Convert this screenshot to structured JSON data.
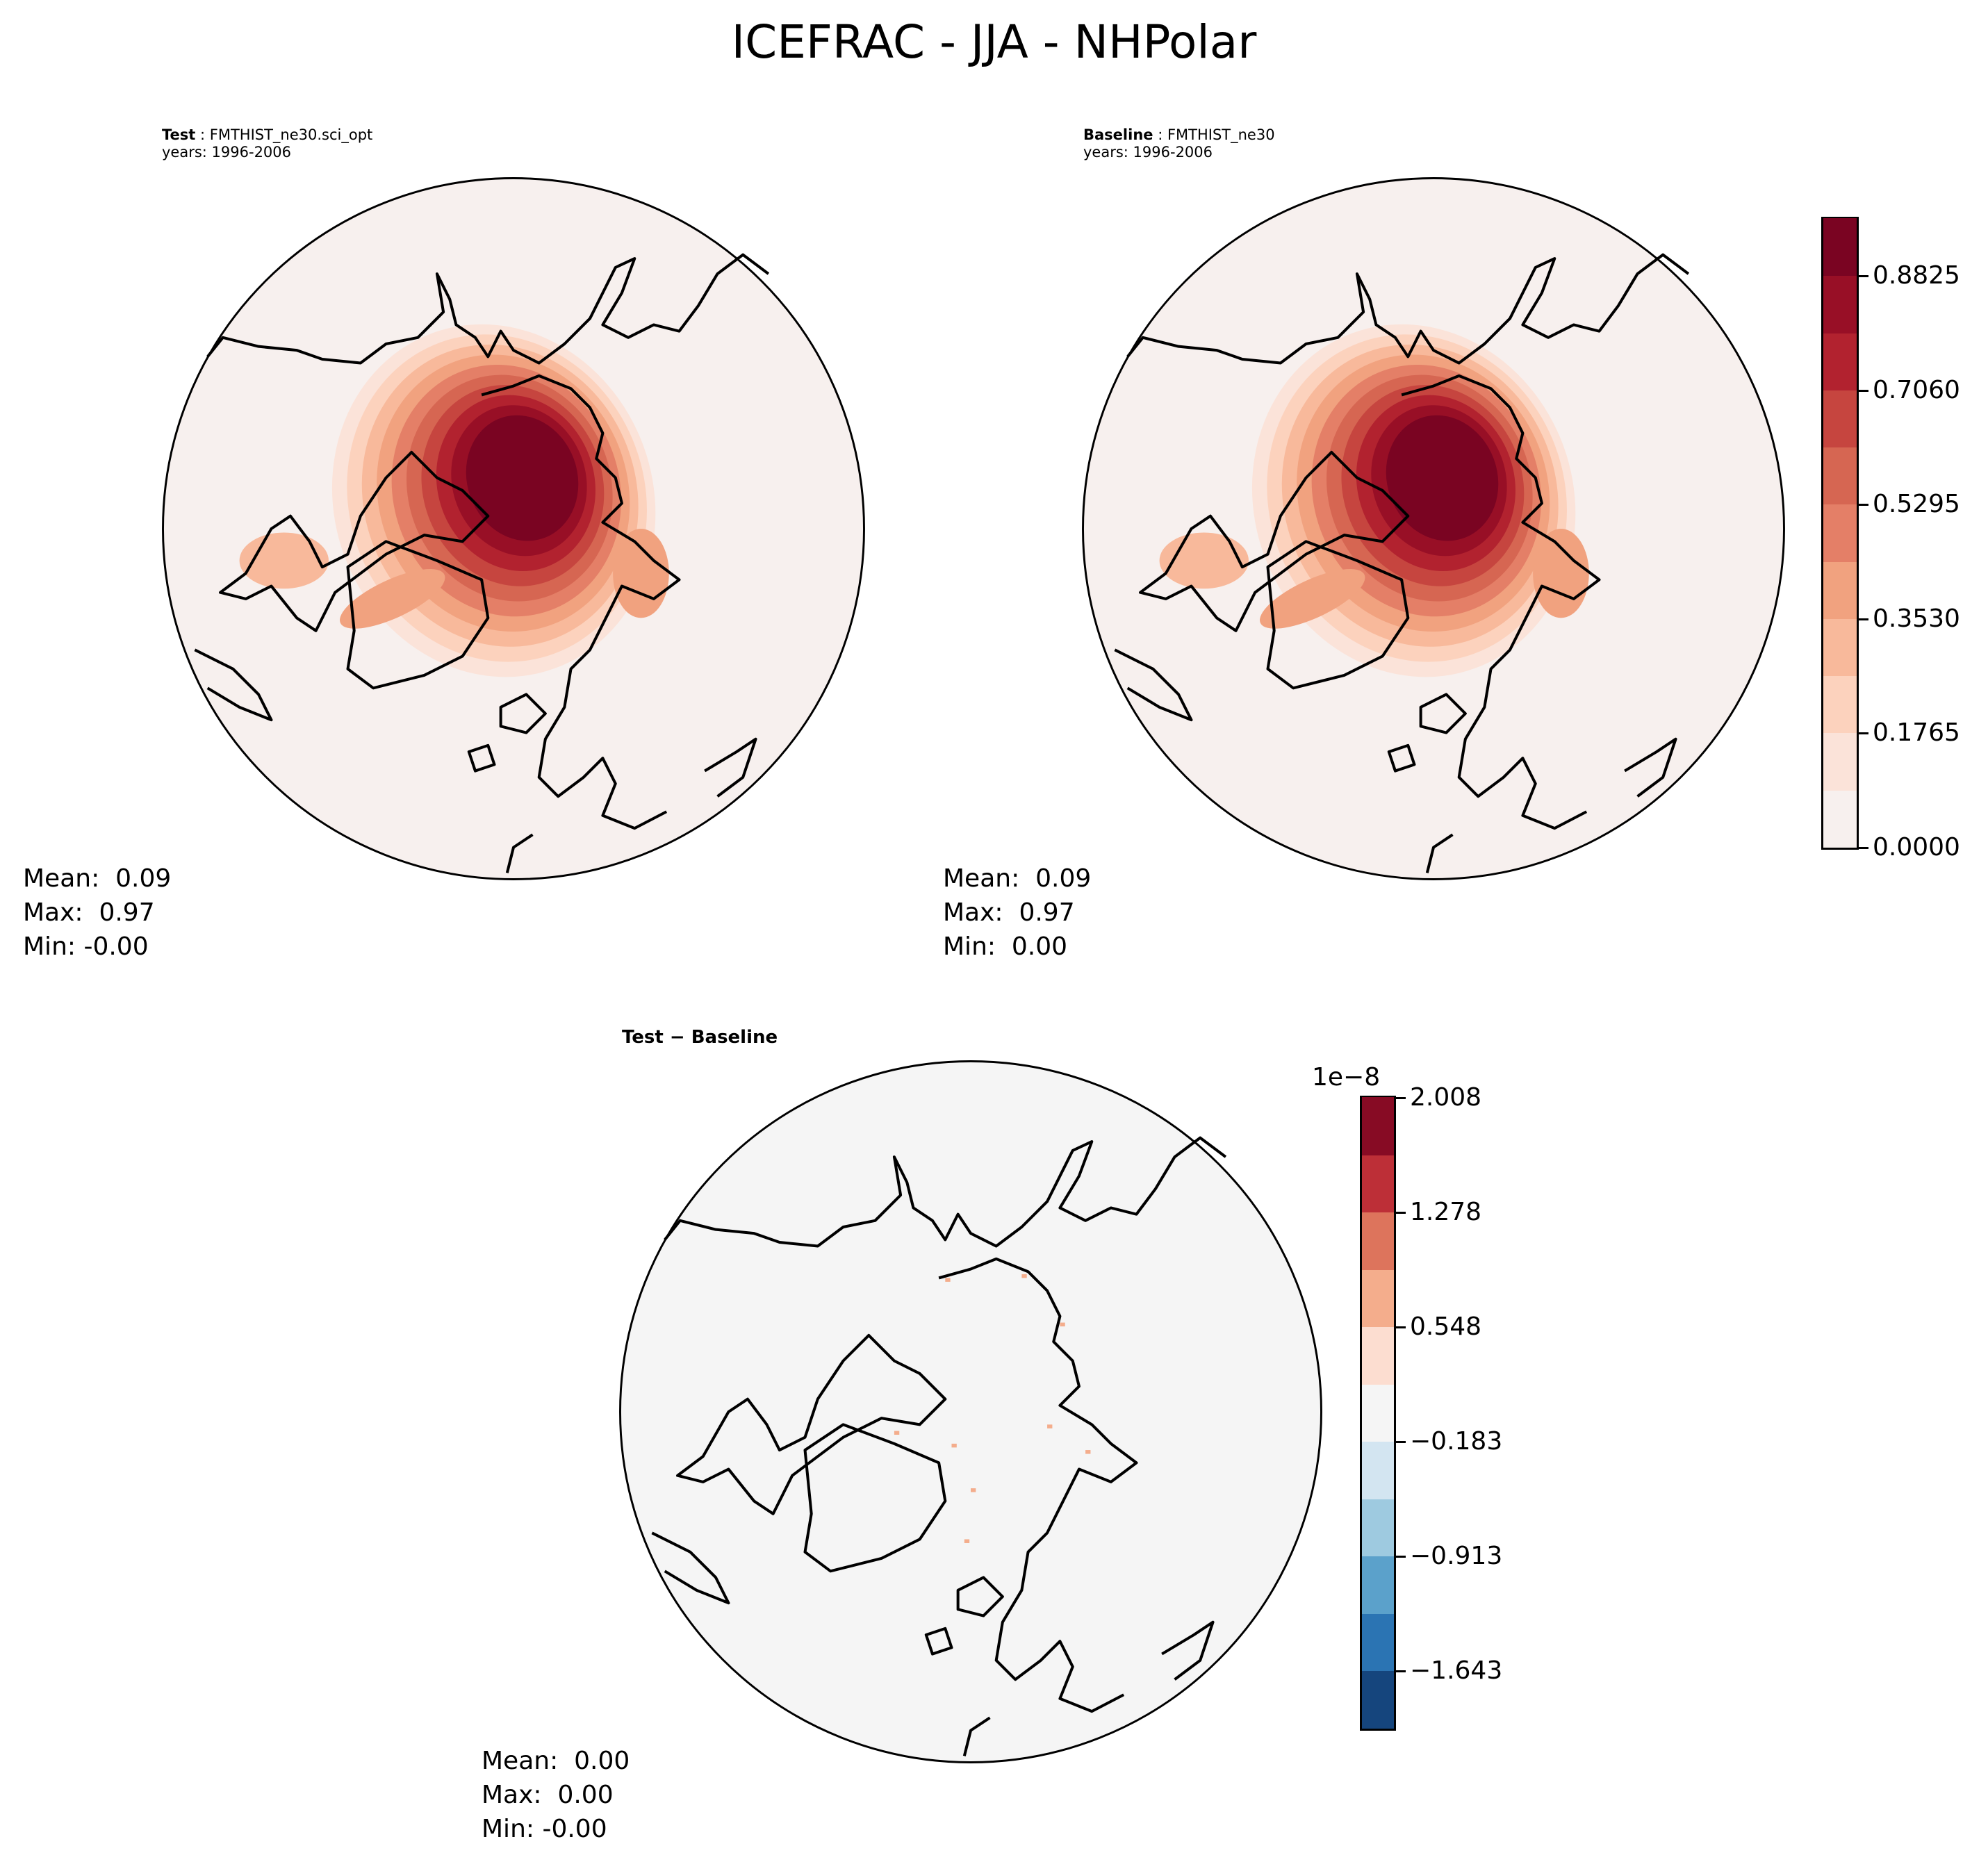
{
  "title": "ICEFRAC - JJA - NHPolar",
  "panels": {
    "test": {
      "label": "Test",
      "case": "FMTHIST_ne30.sci_opt",
      "years": "years: 1996-2006",
      "stats": {
        "mean": "Mean:  0.09",
        "max": "Max:  0.97",
        "min": "Min: -0.00"
      }
    },
    "baseline": {
      "label": "Baseline",
      "case": "FMTHIST_ne30",
      "years": "years: 1996-2006",
      "stats": {
        "mean": "Mean:  0.09",
        "max": "Max:  0.97",
        "min": "Min:  0.00"
      }
    },
    "diff": {
      "title": "Test − Baseline",
      "stats": {
        "mean": "Mean:  0.00",
        "max": "Max:  0.00",
        "min": "Min: -0.00"
      }
    }
  },
  "chart_data": [
    {
      "type": "heatmap",
      "name": "field colorbar (test & baseline)",
      "projection": "north polar stereographic",
      "range": [
        0.0,
        0.97075
      ],
      "ticks": [
        0.0,
        0.1765,
        0.353,
        0.5295,
        0.706,
        0.8825
      ],
      "tick_labels": [
        "0.0000",
        "0.1765",
        "0.3530",
        "0.5295",
        "0.7060",
        "0.8825"
      ],
      "colors": [
        "#f7f0ee",
        "#fbe3d9",
        "#fcd2bd",
        "#f8b99b",
        "#f1a27f",
        "#e47f67",
        "#d66652",
        "#c6453f",
        "#b2222f",
        "#980f26",
        "#7a0422"
      ]
    },
    {
      "type": "heatmap",
      "name": "difference colorbar",
      "range": [
        -2.008,
        2.008
      ],
      "offset_label": "1e−8",
      "ticks": [
        -1.643,
        -0.913,
        -0.183,
        0.548,
        1.278,
        2.008
      ],
      "tick_labels": [
        "−1.643",
        "−0.913",
        "−0.183",
        "0.548",
        "1.278",
        "2.008"
      ],
      "colors": [
        "#15457d",
        "#2b74b3",
        "#5ba1cb",
        "#9ecae0",
        "#d3e5f1",
        "#f5f5f5",
        "#fcddd0",
        "#f4ad8c",
        "#dd745c",
        "#bd2f37",
        "#870b24"
      ]
    }
  ]
}
